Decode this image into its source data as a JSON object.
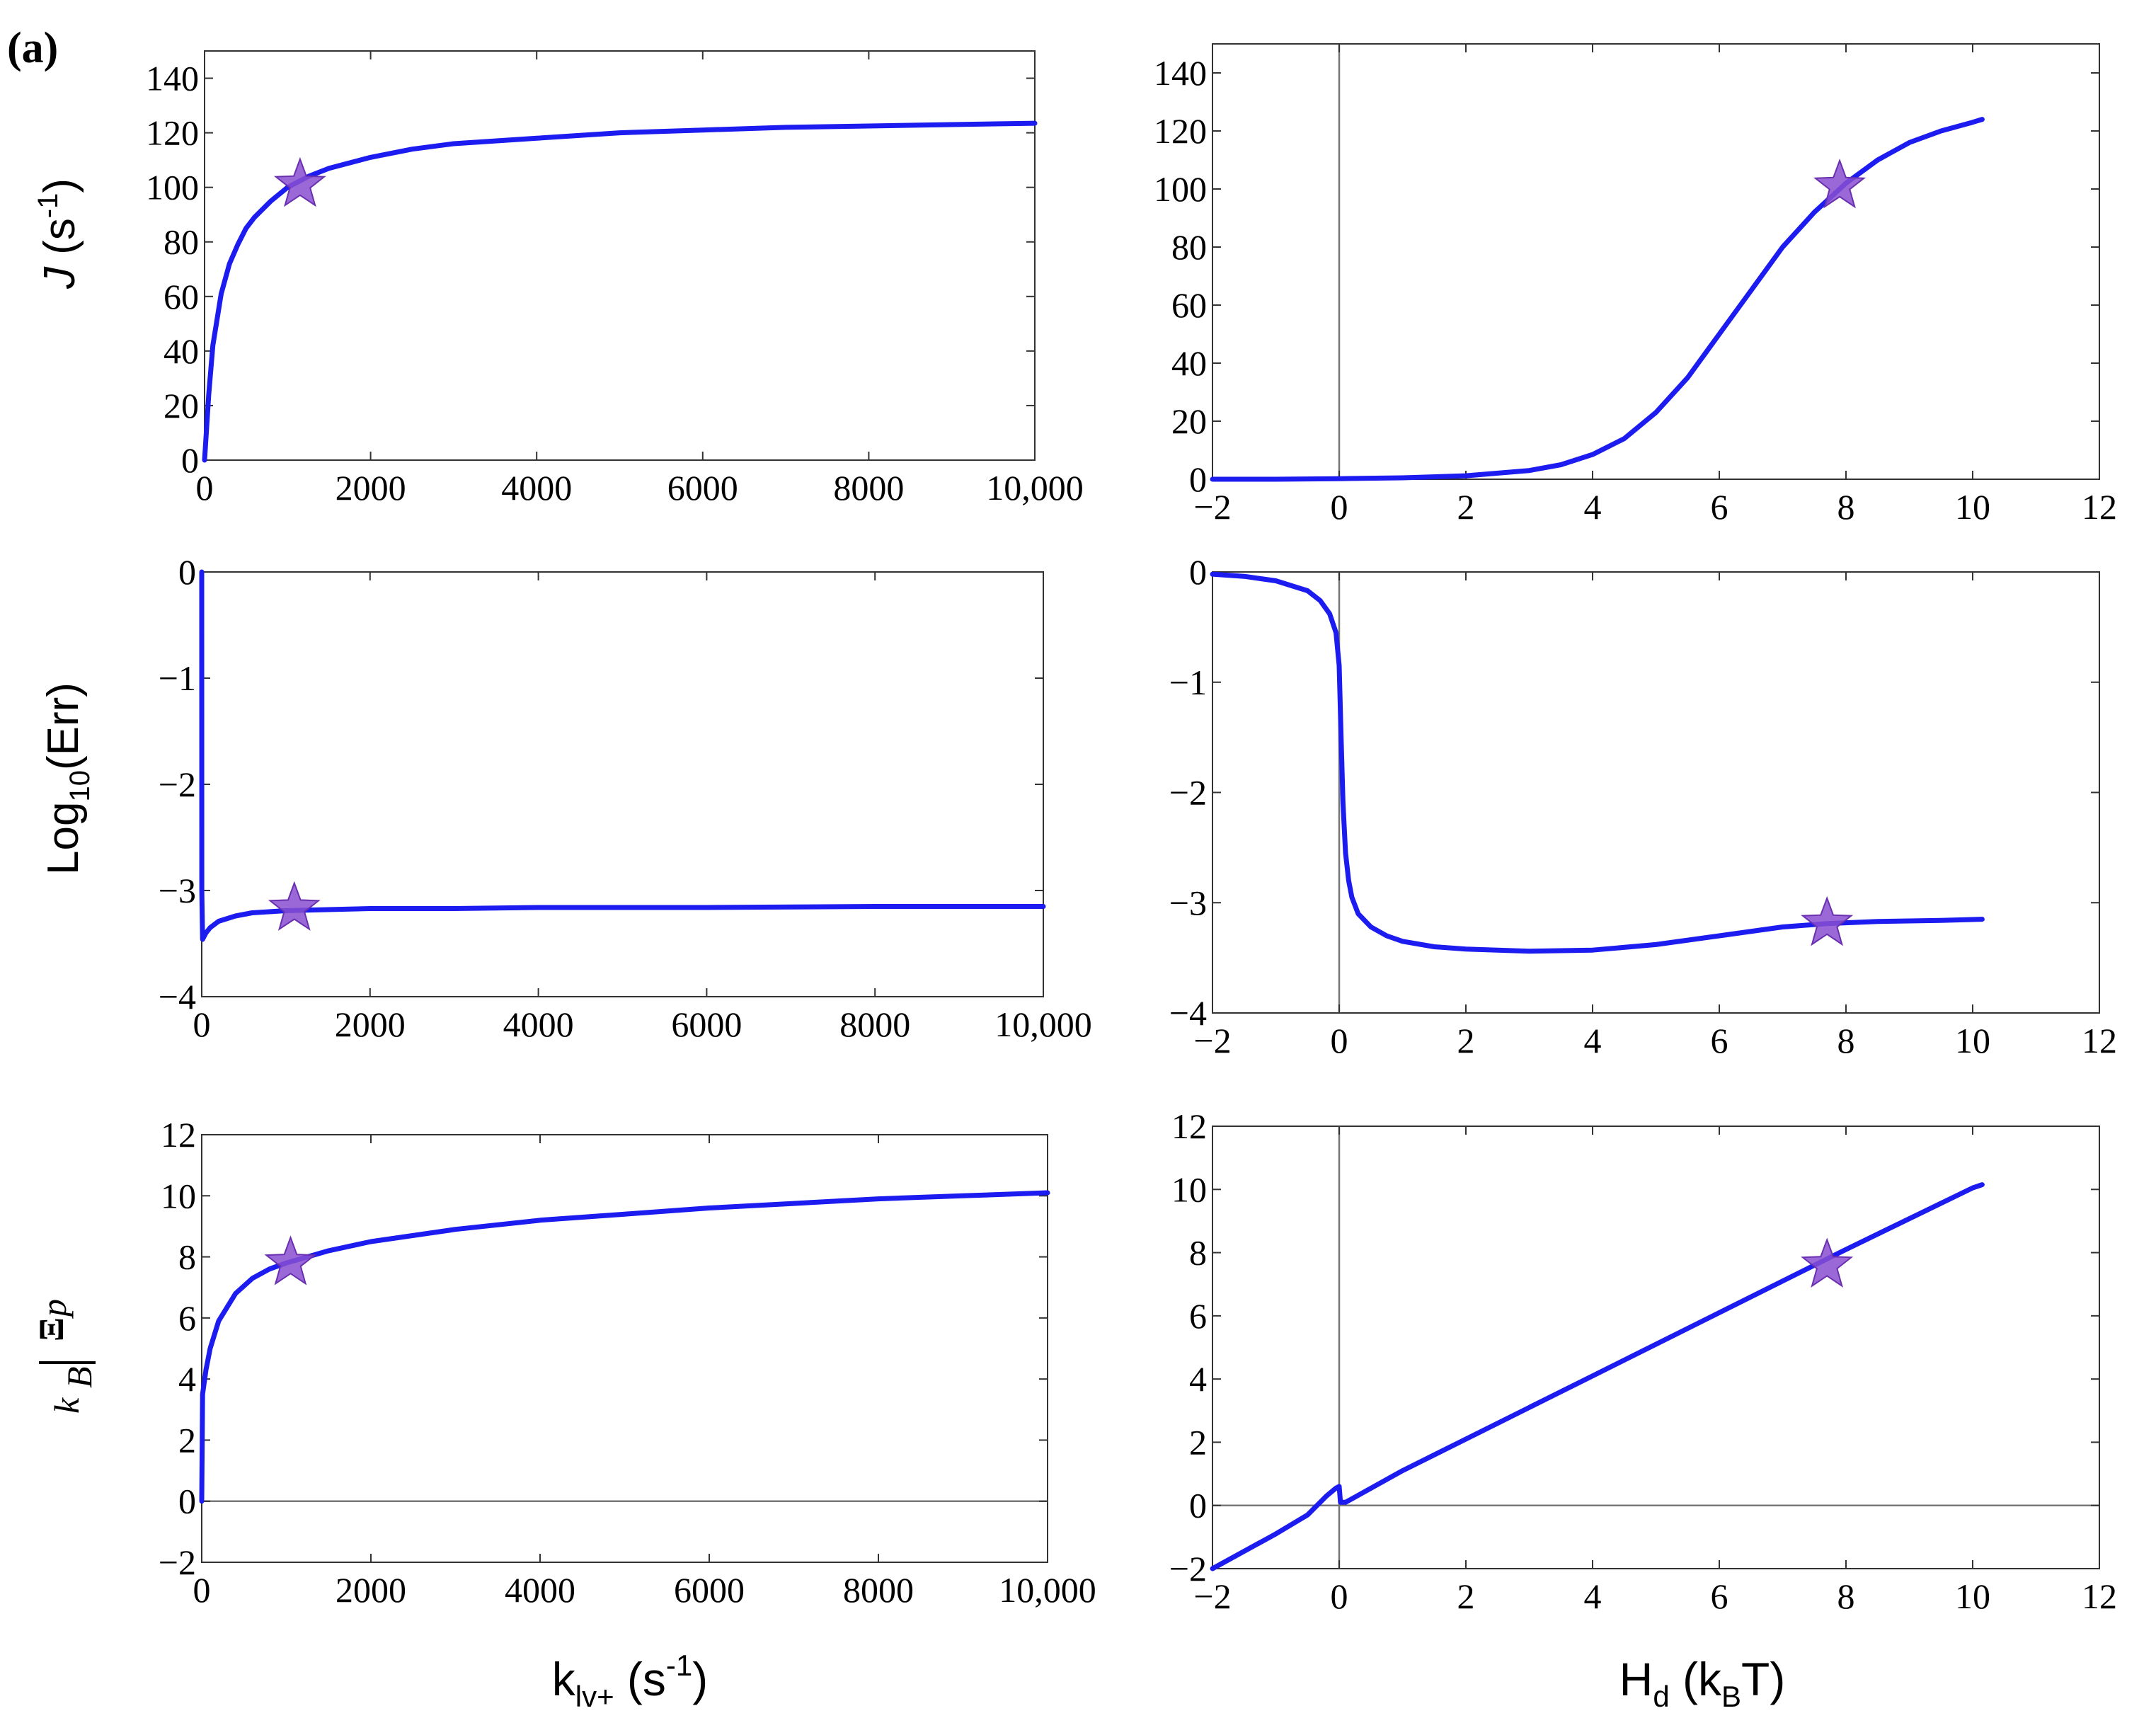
{
  "figure": {
    "panel_label": "(a)",
    "ylabels": {
      "top": {
        "italic": "J",
        "text": " (s",
        "sup": "-1",
        "close": ")"
      },
      "mid": {
        "text": "Log",
        "sub": "10",
        "close": "(Err)"
      },
      "bot": {
        "num_italic": "k",
        "num_sub": "B",
        "den": "Ξ",
        "den_sub": "p"
      }
    },
    "xlabels": {
      "left": {
        "text": "k",
        "sub": "lv+",
        "mid": " (s",
        "sup": "-1",
        "close": ")"
      },
      "right": {
        "text": "H",
        "sub": "d",
        "mid": " (k",
        "sub2": "B",
        "close": "T)"
      }
    }
  },
  "chart_data": [
    {
      "id": "J_vs_klv",
      "type": "line",
      "xlabel": "",
      "ylabel": "J (s-1)",
      "xlim": [
        0,
        10000
      ],
      "ylim": [
        0,
        150
      ],
      "xticks": [
        0,
        2000,
        4000,
        6000,
        8000,
        10000
      ],
      "xticklabels": [
        "0",
        "2000",
        "4000",
        "6000",
        "8000",
        "10,000"
      ],
      "yticks": [
        0,
        20,
        40,
        60,
        80,
        100,
        120,
        140
      ],
      "yticklabels": [
        "0",
        "20",
        "40",
        "60",
        "80",
        "100",
        "120",
        "140"
      ],
      "series": [
        {
          "name": "J",
          "color": "#1c1cf0",
          "x": [
            0,
            50,
            100,
            200,
            300,
            400,
            500,
            600,
            800,
            1000,
            1250,
            1500,
            2000,
            2500,
            3000,
            4000,
            5000,
            6000,
            7000,
            8000,
            9000,
            10000
          ],
          "y": [
            0,
            24,
            42,
            61,
            72,
            79,
            85,
            89,
            95,
            100,
            104,
            107,
            111,
            114,
            116,
            118,
            120,
            121,
            122,
            122.5,
            123,
            123.5
          ]
        }
      ],
      "marker": {
        "x": 1150,
        "y": 101
      }
    },
    {
      "id": "J_vs_Hd",
      "type": "line",
      "xlabel": "",
      "ylabel": "",
      "xlim": [
        -2,
        12
      ],
      "ylim": [
        0,
        150
      ],
      "xticks": [
        -2,
        0,
        2,
        4,
        6,
        8,
        10,
        12
      ],
      "xticklabels": [
        "−2",
        "0",
        "2",
        "4",
        "6",
        "8",
        "10",
        "12"
      ],
      "yticks": [
        0,
        20,
        40,
        60,
        80,
        100,
        120,
        140
      ],
      "yticklabels": [
        "0",
        "20",
        "40",
        "60",
        "80",
        "100",
        "120",
        "140"
      ],
      "vline_at": 0,
      "series": [
        {
          "name": "J",
          "color": "#1c1cf0",
          "x": [
            -2,
            -1,
            0,
            1,
            2,
            3,
            3.5,
            4,
            4.5,
            5,
            5.5,
            6,
            6.5,
            7,
            7.5,
            8,
            8.5,
            9,
            9.5,
            10,
            10.15
          ],
          "y": [
            0,
            0,
            0.2,
            0.5,
            1.2,
            3,
            5,
            8.5,
            14,
            23,
            35,
            50,
            65,
            80,
            92,
            102,
            110,
            116,
            120,
            123,
            124
          ]
        }
      ],
      "marker": {
        "x": 7.9,
        "y": 101
      }
    },
    {
      "id": "Err_vs_klv",
      "type": "line",
      "xlabel": "",
      "ylabel": "Log10(Err)",
      "xlim": [
        0,
        10000
      ],
      "ylim": [
        -4,
        0
      ],
      "xticks": [
        0,
        2000,
        4000,
        6000,
        8000,
        10000
      ],
      "xticklabels": [
        "0",
        "2000",
        "4000",
        "6000",
        "8000",
        "10,000"
      ],
      "yticks": [
        -4,
        -3,
        -2,
        -1,
        0
      ],
      "yticklabels": [
        "−4",
        "−3",
        "−2",
        "−1",
        "0"
      ],
      "series": [
        {
          "name": "Log10(Err)",
          "color": "#1c1cf0",
          "x": [
            0,
            1,
            10,
            50,
            100,
            200,
            400,
            600,
            800,
            1000,
            1500,
            2000,
            3000,
            4000,
            6000,
            8000,
            10000
          ],
          "y": [
            0,
            -3.0,
            -3.46,
            -3.4,
            -3.35,
            -3.29,
            -3.24,
            -3.21,
            -3.2,
            -3.19,
            -3.18,
            -3.17,
            -3.17,
            -3.16,
            -3.16,
            -3.15,
            -3.15
          ]
        }
      ],
      "marker": {
        "x": 1100,
        "y": -3.17
      }
    },
    {
      "id": "Err_vs_Hd",
      "type": "line",
      "xlabel": "",
      "ylabel": "",
      "xlim": [
        -2,
        12
      ],
      "ylim": [
        -4,
        0
      ],
      "xticks": [
        -2,
        0,
        2,
        4,
        6,
        8,
        10,
        12
      ],
      "xticklabels": [
        "−2",
        "0",
        "2",
        "4",
        "6",
        "8",
        "10",
        "12"
      ],
      "yticks": [
        -4,
        -3,
        -2,
        -1,
        0
      ],
      "yticklabels": [
        "−4",
        "−3",
        "−2",
        "−1",
        "0"
      ],
      "vline_at": 0,
      "series": [
        {
          "name": "Log10(Err)",
          "color": "#1c1cf0",
          "x": [
            -2,
            -1.5,
            -1,
            -0.5,
            -0.3,
            -0.15,
            -0.05,
            0,
            0.03,
            0.06,
            0.1,
            0.15,
            0.2,
            0.3,
            0.5,
            0.75,
            1,
            1.5,
            2,
            3,
            4,
            5,
            6,
            7,
            7.7,
            8.5,
            9.5,
            10.15
          ],
          "y": [
            -0.02,
            -0.04,
            -0.08,
            -0.17,
            -0.26,
            -0.38,
            -0.55,
            -0.85,
            -1.5,
            -2.1,
            -2.55,
            -2.8,
            -2.95,
            -3.1,
            -3.22,
            -3.3,
            -3.35,
            -3.4,
            -3.42,
            -3.44,
            -3.43,
            -3.38,
            -3.3,
            -3.22,
            -3.19,
            -3.17,
            -3.16,
            -3.15
          ]
        }
      ],
      "marker": {
        "x": 7.7,
        "y": -3.19
      }
    },
    {
      "id": "Xi_vs_klv",
      "type": "line",
      "xlabel": "k_lv+ (s-1)",
      "ylabel": "Ξp/kB",
      "xlim": [
        0,
        10000
      ],
      "ylim": [
        -2,
        12
      ],
      "xticks": [
        0,
        2000,
        4000,
        6000,
        8000,
        10000
      ],
      "xticklabels": [
        "0",
        "2000",
        "4000",
        "6000",
        "8000",
        "10,000"
      ],
      "yticks": [
        -2,
        0,
        2,
        4,
        6,
        8,
        10,
        12
      ],
      "yticklabels": [
        "−2",
        "0",
        "2",
        "4",
        "6",
        "8",
        "10",
        "12"
      ],
      "hline_at": 0,
      "series": [
        {
          "name": "Ξp/kB",
          "color": "#1c1cf0",
          "x": [
            0,
            10,
            50,
            100,
            200,
            400,
            600,
            800,
            1000,
            1500,
            2000,
            3000,
            4000,
            5000,
            6000,
            7000,
            8000,
            9000,
            10000
          ],
          "y": [
            0,
            3.5,
            4.3,
            5.0,
            5.9,
            6.8,
            7.3,
            7.6,
            7.8,
            8.2,
            8.5,
            8.9,
            9.2,
            9.4,
            9.6,
            9.75,
            9.9,
            10.0,
            10.1
          ]
        }
      ],
      "marker": {
        "x": 1050,
        "y": 7.8
      }
    },
    {
      "id": "Xi_vs_Hd",
      "type": "line",
      "xlabel": "Hd (kBT)",
      "ylabel": "",
      "xlim": [
        -2,
        12
      ],
      "ylim": [
        -2,
        12
      ],
      "xticks": [
        -2,
        0,
        2,
        4,
        6,
        8,
        10,
        12
      ],
      "xticklabels": [
        "−2",
        "0",
        "2",
        "4",
        "6",
        "8",
        "10",
        "12"
      ],
      "yticks": [
        -2,
        0,
        2,
        4,
        6,
        8,
        10,
        12
      ],
      "yticklabels": [
        "−2",
        "0",
        "2",
        "4",
        "6",
        "8",
        "10",
        "12"
      ],
      "vline_at": 0,
      "hline_at": 0,
      "series": [
        {
          "name": "Ξp/kB",
          "color": "#1c1cf0",
          "x": [
            -2,
            -1,
            -0.5,
            -0.2,
            -0.05,
            0,
            0.02,
            0.1,
            1,
            2,
            4,
            6,
            8,
            10,
            10.15
          ],
          "y": [
            -2,
            -0.9,
            -0.3,
            0.3,
            0.55,
            0.6,
            0.1,
            0.1,
            1.1,
            2.1,
            4.1,
            6.1,
            8.1,
            10.05,
            10.15
          ]
        }
      ],
      "marker": {
        "x": 7.7,
        "y": 7.6
      }
    }
  ]
}
